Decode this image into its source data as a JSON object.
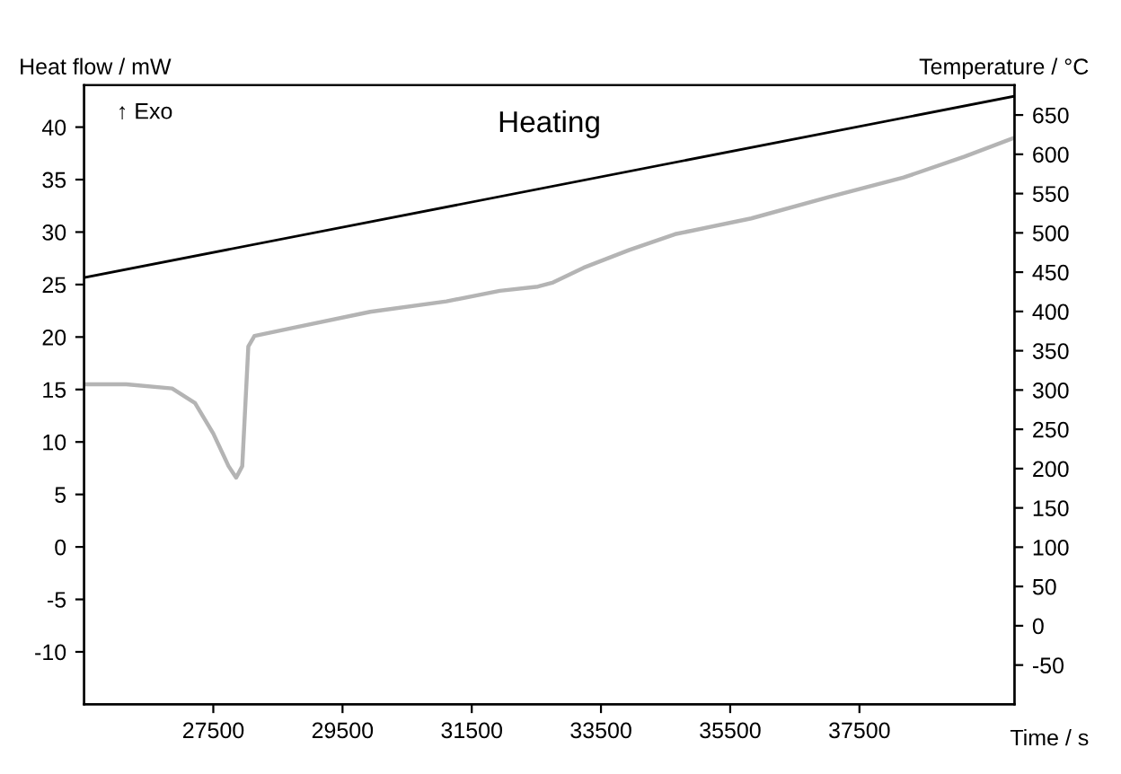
{
  "chart_data": {
    "type": "line",
    "title": "Heating",
    "xlabel": "Time / s",
    "ylabel": "Heat flow / mW",
    "y2label": "Temperature / °C",
    "annotations": [
      "↑ Exo"
    ],
    "series": [
      {
        "color": "#b4b4b4",
        "x": [
          25500,
          26156,
          26863,
          27217,
          27500,
          27736,
          27854,
          27948,
          28042,
          28137,
          28750,
          29929,
          31108,
          31934,
          32523,
          32759,
          33231,
          33939,
          34646,
          35825,
          37005,
          38184,
          39127,
          39900
        ],
        "values": [
          15.5,
          15.5,
          15.1,
          13.7,
          10.8,
          7.7,
          6.6,
          7.7,
          19.1,
          20.1,
          20.9,
          22.4,
          23.4,
          24.4,
          24.8,
          25.2,
          26.6,
          28.3,
          29.8,
          31.3,
          33.3,
          35.2,
          37.2,
          39.0
        ]
      },
      {
        "color": "#000000",
        "axis": "y2",
        "x": [
          25500,
          39900
        ],
        "values": [
          443,
          674
        ]
      }
    ],
    "xlim": [
      25500,
      39900
    ],
    "xticks": [
      27500,
      29500,
      31500,
      33500,
      35500,
      37500
    ],
    "ylim": [
      -15,
      44
    ],
    "yticks": [
      -10,
      -5,
      0,
      5,
      10,
      15,
      20,
      25,
      30,
      35,
      40
    ],
    "y2lim": [
      -100,
      688
    ],
    "y2ticks": [
      -50,
      0,
      50,
      100,
      150,
      200,
      250,
      300,
      350,
      400,
      450,
      500,
      550,
      600,
      650
    ],
    "grid": false,
    "legend": false,
    "line_style": "solid",
    "marker": "none"
  }
}
